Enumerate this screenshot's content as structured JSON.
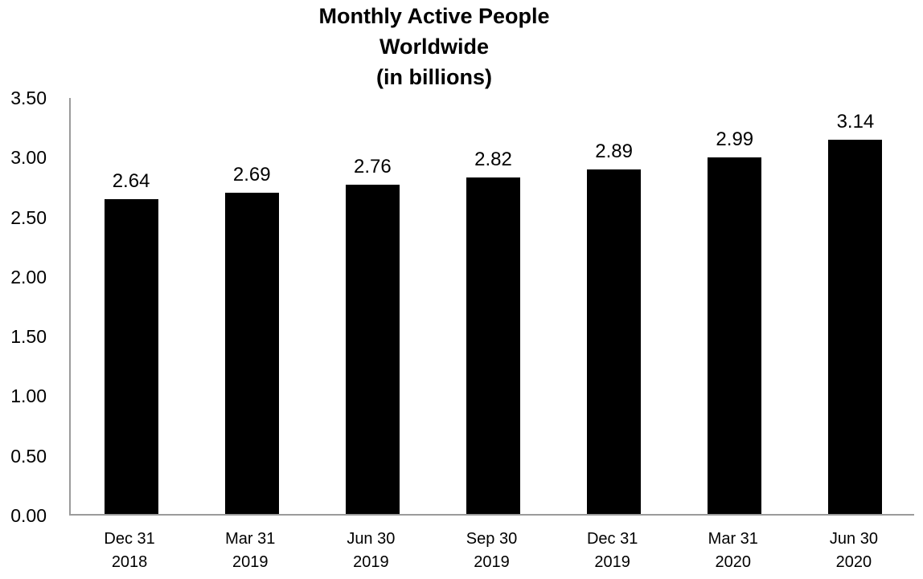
{
  "title": {
    "line1": "Monthly Active People",
    "line2": "Worldwide",
    "line3": "(in billions)"
  },
  "chart_data": {
    "type": "bar",
    "title": "Monthly Active People Worldwide (in billions)",
    "categories": [
      [
        "Dec 31",
        "2018"
      ],
      [
        "Mar 31",
        "2019"
      ],
      [
        "Jun 30",
        "2019"
      ],
      [
        "Sep 30",
        "2019"
      ],
      [
        "Dec 31",
        "2019"
      ],
      [
        "Mar 31",
        "2020"
      ],
      [
        "Jun 30",
        "2020"
      ]
    ],
    "values": [
      2.64,
      2.69,
      2.76,
      2.82,
      2.89,
      2.99,
      3.14
    ],
    "value_labels": [
      "2.64",
      "2.69",
      "2.76",
      "2.82",
      "2.89",
      "2.99",
      "3.14"
    ],
    "yticks": [
      "0.00",
      "0.50",
      "1.00",
      "1.50",
      "2.00",
      "2.50",
      "3.00",
      "3.50"
    ],
    "ylim": [
      0,
      3.5
    ],
    "xlabel": "",
    "ylabel": "",
    "grid": false,
    "legend": false,
    "bar_color": "#000000",
    "axis_color": "#9b9b9b",
    "background_color": "#ffffff"
  }
}
